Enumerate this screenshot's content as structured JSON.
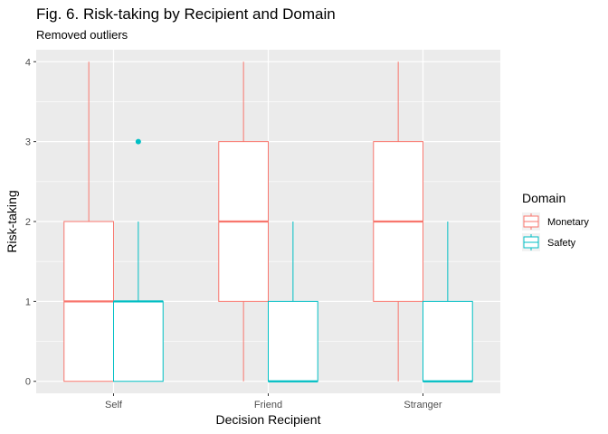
{
  "chart_data": {
    "type": "boxplot",
    "title": "Fig. 6. Risk-taking by Recipient and Domain",
    "subtitle": "Removed outliers",
    "xlabel": "Decision Recipient",
    "ylabel": "Risk-taking",
    "categories": [
      "Self",
      "Friend",
      "Stranger"
    ],
    "ylim": [
      -0.15,
      4.15
    ],
    "yticks": [
      0,
      1,
      2,
      3,
      4
    ],
    "grid": true,
    "legend": {
      "title": "Domain",
      "position": "right"
    },
    "series": [
      {
        "name": "Monetary",
        "color": "#F8766D",
        "boxes": [
          {
            "category": "Self",
            "min": 0,
            "q1": 0,
            "median": 1,
            "q3": 2,
            "max": 4,
            "outliers": []
          },
          {
            "category": "Friend",
            "min": 0,
            "q1": 1,
            "median": 2,
            "q3": 3,
            "max": 4,
            "outliers": []
          },
          {
            "category": "Stranger",
            "min": 0,
            "q1": 1,
            "median": 2,
            "q3": 3,
            "max": 4,
            "outliers": []
          }
        ]
      },
      {
        "name": "Safety",
        "color": "#00BFC4",
        "boxes": [
          {
            "category": "Self",
            "min": 0,
            "q1": 0,
            "median": 1,
            "q3": 1,
            "max": 2,
            "outliers": [
              3
            ]
          },
          {
            "category": "Friend",
            "min": 0,
            "q1": 0,
            "median": 0,
            "q3": 1,
            "max": 2,
            "outliers": []
          },
          {
            "category": "Stranger",
            "min": 0,
            "q1": 0,
            "median": 0,
            "q3": 1,
            "max": 2,
            "outliers": []
          }
        ]
      }
    ]
  }
}
